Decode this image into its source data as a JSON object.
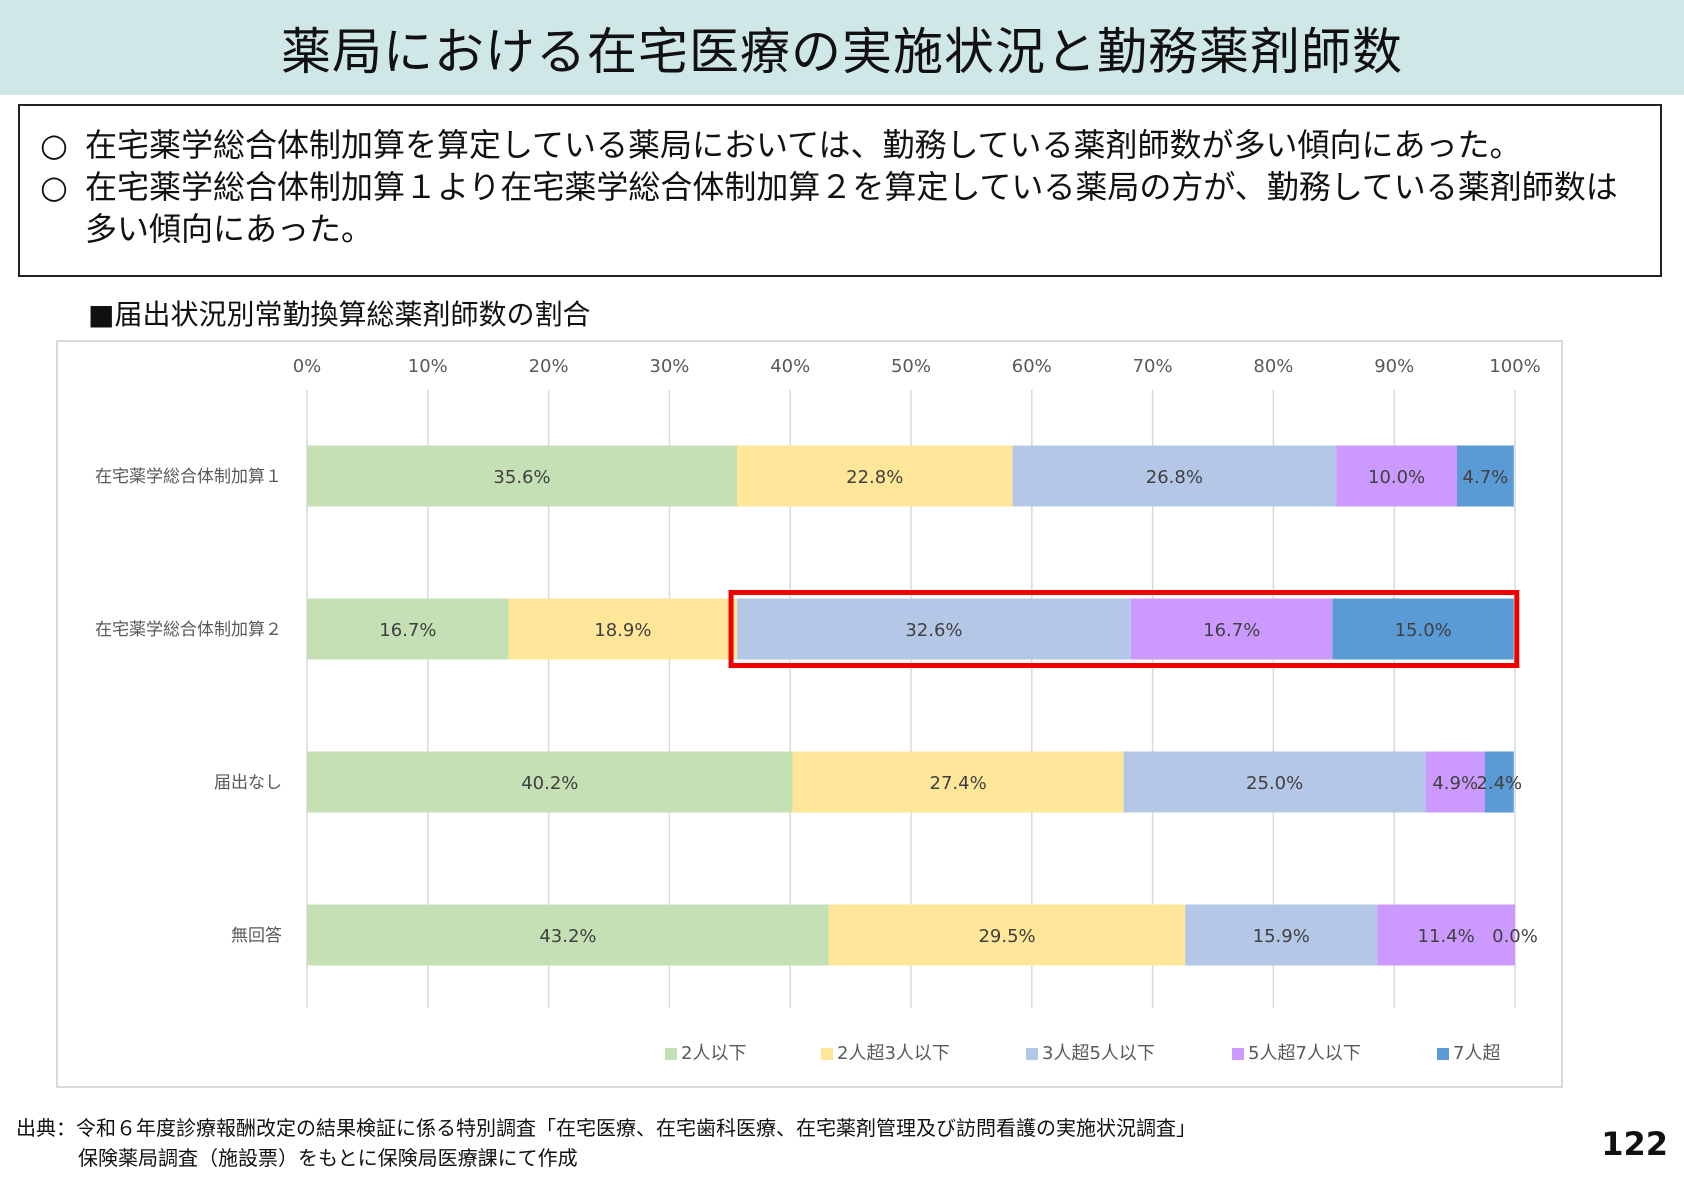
{
  "header": {
    "title": "薬局における在宅医療の実施状況と勤務薬剤師数"
  },
  "summary": {
    "items": [
      {
        "bullet": "○",
        "text": "在宅薬学総合体制加算を算定している薬局においては、勤務している薬剤師数が多い傾向にあった。"
      },
      {
        "bullet": "○",
        "text": "在宅薬学総合体制加算１より在宅薬学総合体制加算２を算定している薬局の方が、勤務している薬剤師数は多い傾向にあった。"
      }
    ]
  },
  "chart_section": {
    "title": "■届出状況別常勤換算総薬剤師数の割合"
  },
  "chart_data": {
    "type": "bar",
    "orientation": "horizontal",
    "stacked": "percent",
    "categories": [
      "在宅薬学総合体制加算１",
      "在宅薬学総合体制加算２",
      "届出なし",
      "無回答"
    ],
    "x_ticks": [
      "0%",
      "10%",
      "20%",
      "30%",
      "40%",
      "50%",
      "60%",
      "70%",
      "80%",
      "90%",
      "100%"
    ],
    "xlim": [
      0,
      100
    ],
    "grid": true,
    "legend_position": "bottom",
    "series": [
      {
        "name": "2人以下",
        "color": "#c5e0b4",
        "values": [
          35.6,
          16.7,
          40.2,
          43.2
        ],
        "labels": [
          "35.6%",
          "16.7%",
          "40.2%",
          "43.2%"
        ]
      },
      {
        "name": "2人超3人以下",
        "color": "#ffe699",
        "values": [
          22.8,
          18.9,
          27.4,
          29.5
        ],
        "labels": [
          "22.8%",
          "18.9%",
          "27.4%",
          "29.5%"
        ]
      },
      {
        "name": "3人超5人以下",
        "color": "#b4c7e7",
        "values": [
          26.8,
          32.6,
          25.0,
          15.9
        ],
        "labels": [
          "26.8%",
          "32.6%",
          "25.0%",
          "15.9%"
        ]
      },
      {
        "name": "5人超7人以下",
        "color": "#cc99ff",
        "values": [
          10.0,
          16.7,
          4.9,
          11.4
        ],
        "labels": [
          "10.0%",
          "16.7%",
          "4.9%",
          "11.4%"
        ]
      },
      {
        "name": "7人超",
        "color": "#5b9bd5",
        "values": [
          4.7,
          15.0,
          2.4,
          0.0
        ],
        "labels": [
          "4.7%",
          "15.0%",
          "2.4%",
          "0.0%"
        ]
      }
    ],
    "highlight": {
      "category_index": 1,
      "from_series": 2,
      "to_series": 4,
      "color": "#ee0000"
    }
  },
  "source": {
    "line1": "出典：令和６年度診療報酬改定の結果検証に係る特別調査「在宅医療、在宅歯科医療、在宅薬剤管理及び訪問看護の実施状況調査」",
    "line2": "保険薬局調査（施設票）をもとに保険局医療課にて作成"
  },
  "page_number": "122"
}
